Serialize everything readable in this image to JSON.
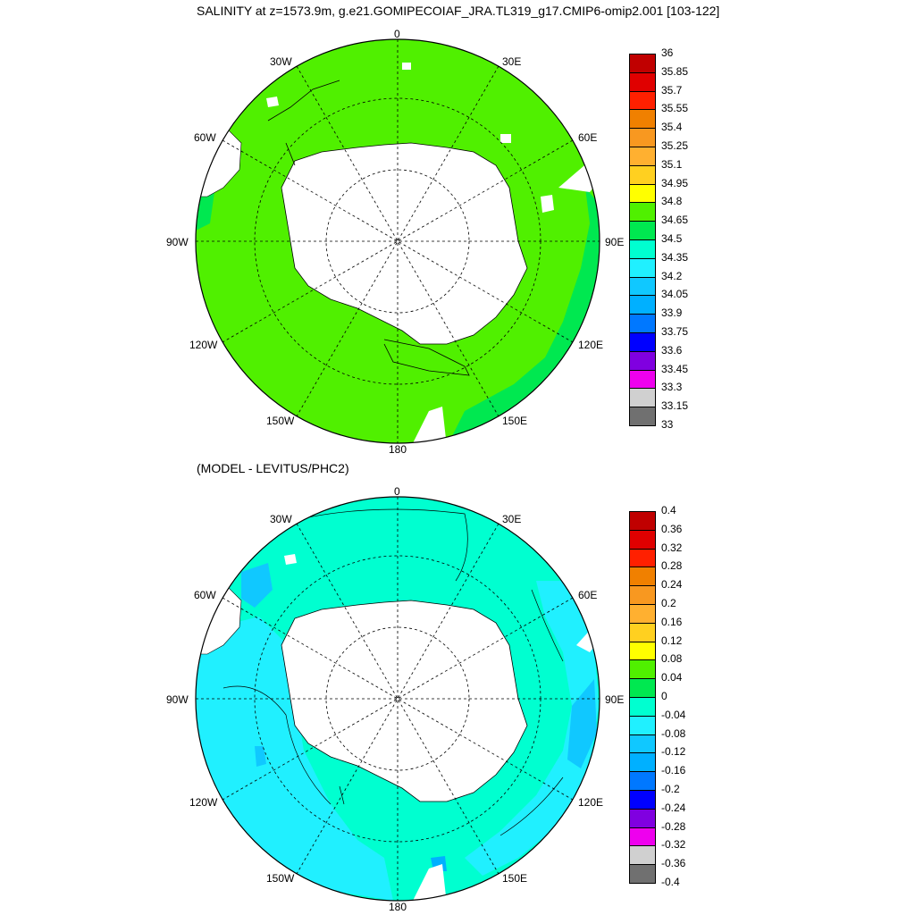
{
  "top_panel": {
    "title": "SALINITY at z=1573.9m, g.e21.GOMIPECOIAF_JRA.TL319_g17.CMIP6-omip2.001 [103-122]",
    "lon_labels": [
      "0",
      "30E",
      "60E",
      "90E",
      "120E",
      "150E",
      "180",
      "150W",
      "120W",
      "90W",
      "60W",
      "30W"
    ],
    "colorbar": {
      "labels": [
        "36",
        "35.85",
        "35.7",
        "35.55",
        "35.4",
        "35.25",
        "35.1",
        "34.95",
        "34.8",
        "34.65",
        "34.5",
        "34.35",
        "34.2",
        "34.05",
        "33.9",
        "33.75",
        "33.6",
        "33.45",
        "33.3",
        "33.15",
        "33"
      ],
      "colors": [
        "#c00000",
        "#e00000",
        "#ff2000",
        "#f08000",
        "#f89820",
        "#ffb030",
        "#ffd020",
        "#ffff00",
        "#50f000",
        "#00e850",
        "#00ffd0",
        "#20f0ff",
        "#10c8ff",
        "#00b0ff",
        "#0078ff",
        "#0000ff",
        "#8000e0",
        "#ee00ee",
        "#d0d0d0",
        "#707070"
      ]
    }
  },
  "bottom_panel": {
    "title": "(MODEL - LEVITUS/PHC2)",
    "lon_labels": [
      "0",
      "30E",
      "60E",
      "90E",
      "120E",
      "150E",
      "180",
      "150W",
      "120W",
      "90W",
      "60W",
      "30W"
    ],
    "colorbar": {
      "labels": [
        "0.4",
        "0.36",
        "0.32",
        "0.28",
        "0.24",
        "0.2",
        "0.16",
        "0.12",
        "0.08",
        "0.04",
        "0",
        "-0.04",
        "-0.08",
        "-0.12",
        "-0.16",
        "-0.2",
        "-0.24",
        "-0.28",
        "-0.32",
        "-0.36",
        "-0.4"
      ],
      "colors": [
        "#c00000",
        "#e00000",
        "#ff2000",
        "#f08000",
        "#f89820",
        "#ffb030",
        "#ffd020",
        "#ffff00",
        "#50f000",
        "#00e850",
        "#00ffd0",
        "#20f0ff",
        "#10c8ff",
        "#00b0ff",
        "#0078ff",
        "#0000ff",
        "#8000e0",
        "#ee00ee",
        "#d0d0d0",
        "#707070"
      ]
    }
  },
  "map_colors": {
    "salinity_main": "#50f000",
    "salinity_low": "#00e850",
    "diff_main": "#00ffd0",
    "diff_mid": "#20f0ff",
    "diff_low": "#10c8ff",
    "diff_lower": "#00b0ff",
    "land": "#ffffff"
  }
}
